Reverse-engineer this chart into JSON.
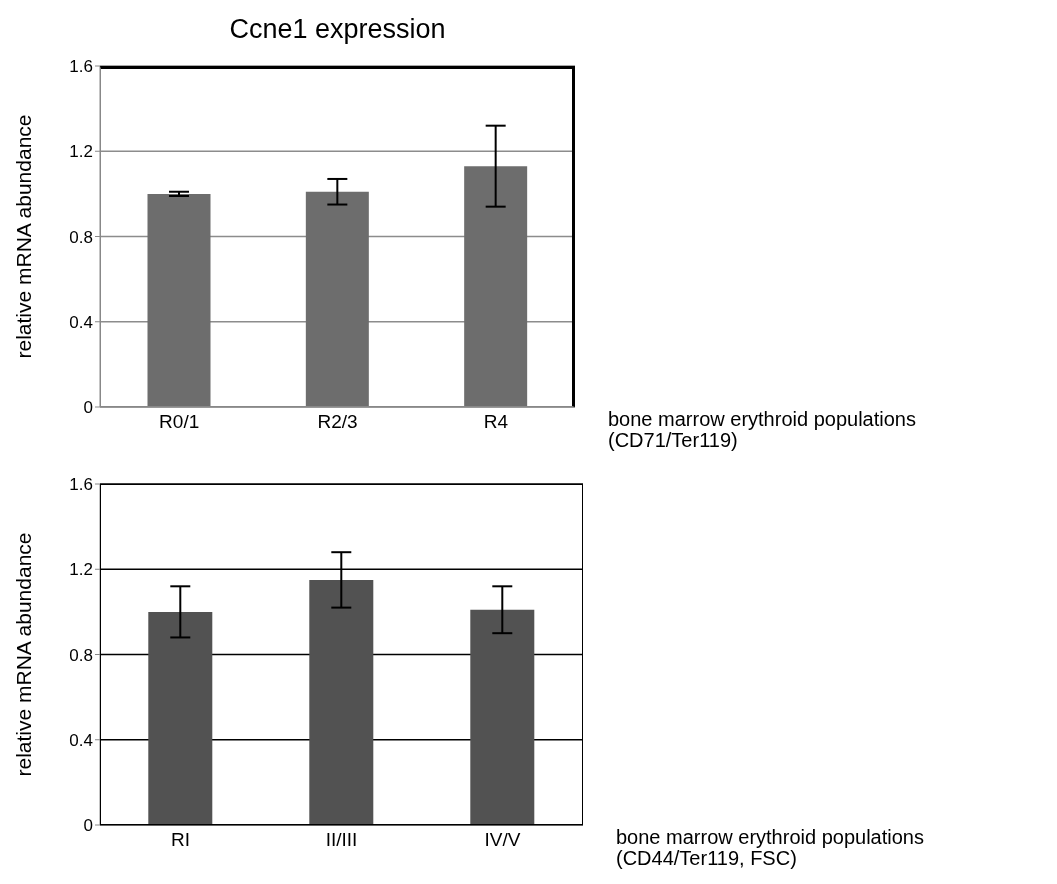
{
  "chart_data": [
    {
      "type": "bar",
      "title": "Ccne1 expression",
      "ylabel": "relative mRNA abundance",
      "xlabel": "bone marrow erythroid populations\n(CD71/Ter119)",
      "categories": [
        "R0/1",
        "R2/3",
        "R4"
      ],
      "values": [
        1.0,
        1.01,
        1.13
      ],
      "errors": [
        0.01,
        0.06,
        0.19
      ],
      "color": "#6d6d6d",
      "ylim": [
        0,
        1.6
      ],
      "yticks": [
        0,
        0.4,
        0.8,
        1.2,
        1.6
      ],
      "grid": "y"
    },
    {
      "type": "bar",
      "ylabel": "relative mRNA abundance",
      "xlabel": "bone marrow erythroid populations\n(CD44/Ter119, FSC)",
      "categories": [
        "RI",
        "II/III",
        "IV/V"
      ],
      "values": [
        1.0,
        1.15,
        1.01
      ],
      "errors": [
        0.12,
        0.13,
        0.11
      ],
      "color": "#525252",
      "ylim": [
        0,
        1.6
      ],
      "yticks": [
        0,
        0.4,
        0.8,
        1.2,
        1.6
      ],
      "grid": "y"
    }
  ]
}
